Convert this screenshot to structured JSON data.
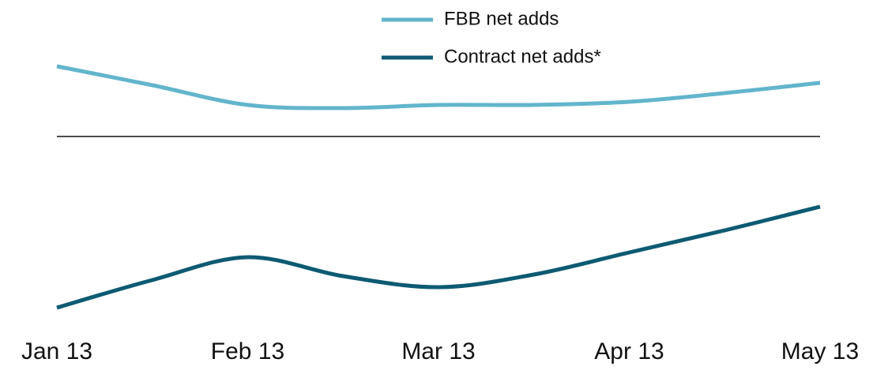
{
  "chart_data": {
    "type": "line",
    "categories": [
      "Jan 13",
      null,
      "Feb 13",
      null,
      "Mar 13",
      null,
      "Apr 13",
      null,
      "May 13"
    ],
    "series": [
      {
        "name": "FBB net adds",
        "color": "#62b5cc",
        "values": [
          44.5,
          32.5,
          20,
          18,
          20,
          20,
          22,
          27.5,
          34
        ]
      },
      {
        "name": "Contract net adds*",
        "color": "#0e5a73",
        "values": [
          -108.5,
          -91,
          -76.5,
          -88.5,
          -95.5,
          -87.5,
          -73.5,
          -59.5,
          -44.5
        ]
      }
    ],
    "ylim": [
      -120,
      60
    ],
    "legend": "top"
  }
}
